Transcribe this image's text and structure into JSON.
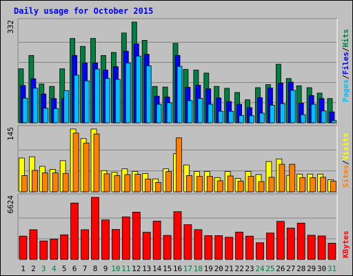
{
  "chart_data": {
    "type": "bar",
    "title": "Daily usage for October 2015",
    "categories": [
      "1",
      "2",
      "3",
      "4",
      "5",
      "6",
      "7",
      "8",
      "9",
      "10",
      "11",
      "12",
      "13",
      "14",
      "15",
      "16",
      "17",
      "18",
      "19",
      "20",
      "21",
      "22",
      "23",
      "24",
      "25",
      "26",
      "27",
      "28",
      "29",
      "30",
      "31"
    ],
    "weekend_days": [
      "3",
      "4",
      "10",
      "11",
      "17",
      "18",
      "24",
      "25",
      "31"
    ],
    "panels": [
      {
        "name": "hits-files-pages",
        "ymax_label": "332",
        "ymax": 332,
        "series": [
          {
            "name": "Hits",
            "color": "#008040",
            "values": [
              178,
              222,
              128,
              120,
              178,
              278,
              252,
              278,
              222,
              232,
              296,
              332,
              272,
              120,
              118,
              262,
              176,
              174,
              164,
              120,
              114,
              100,
              76,
              116,
              126,
              193,
              146,
              122,
              116,
              98,
              80
            ]
          },
          {
            "name": "Files",
            "color": "#0000ff",
            "values": [
              139,
              161,
              111,
              96,
              96,
              238,
              213,
              213,
              190,
              201,
              252,
              276,
              242,
              104,
              101,
              238,
              133,
              140,
              128,
              98,
              86,
              77,
              66,
              99,
              131,
              147,
              150,
              81,
              106,
              96,
              52
            ]
          },
          {
            "name": "Pages",
            "color": "#00bfff",
            "values": [
              113,
              146,
              80,
              79,
              138,
              189,
              170,
              209,
              178,
              175,
              229,
              252,
              220,
              93,
              98,
              218,
              105,
              112,
              93,
              70,
              70,
              56,
              55,
              64,
              90,
              95,
              139,
              59,
              93,
              71,
              39
            ]
          }
        ]
      },
      {
        "name": "visits-sites",
        "ymax_label": "145",
        "ymax": 145,
        "series": [
          {
            "name": "Visits",
            "color": "#ffff00",
            "values": [
              78,
              81,
              59,
              52,
              72,
              145,
              123,
              145,
              49,
              45,
              53,
              47,
              42,
              30,
              53,
              88,
              62,
              47,
              47,
              33,
              47,
              31,
              47,
              40,
              70,
              76,
              38,
              41,
              41,
              41,
              28
            ]
          },
          {
            "name": "Sites",
            "color": "#ff8000",
            "values": [
              44,
              56,
              50,
              50,
              49,
              142,
              119,
              140,
              48,
              44,
              46,
              47,
              36,
              28,
              53,
              131,
              44,
              42,
              42,
              32,
              43,
              31,
              42,
              30,
              40,
              70,
              70,
              39,
              39,
              40,
              31
            ]
          }
        ]
      },
      {
        "name": "kbytes",
        "ymax_label": "6624",
        "ymax": 6624,
        "series": [
          {
            "name": "KBytes",
            "color": "#ff0000",
            "values": [
              2490,
              3170,
              1970,
              2170,
              2630,
              6020,
              3170,
              6624,
              4220,
              3200,
              4540,
              5050,
              2900,
              4090,
              2570,
              5100,
              3710,
              3180,
              2540,
              2540,
              2370,
              2920,
              2490,
              1780,
              2820,
              4060,
              3350,
              3880,
              2580,
              2510,
              1740
            ]
          }
        ]
      }
    ],
    "side_labels": {
      "panel1": [
        {
          "text": "Pages",
          "color": "#00bfff"
        },
        {
          "text": "/",
          "color": "#000000"
        },
        {
          "text": "Files",
          "color": "#0000ff"
        },
        {
          "text": "/",
          "color": "#000000"
        },
        {
          "text": "Hits",
          "color": "#008040"
        }
      ],
      "panel2": [
        {
          "text": "Sites",
          "color": "#ff8000"
        },
        {
          "text": "/",
          "color": "#000000"
        },
        {
          "text": "Visits",
          "color": "#ffff00"
        }
      ],
      "panel3": [
        {
          "text": "KBytes",
          "color": "#ff0000"
        }
      ]
    },
    "title_color": "#0000ff",
    "weekend_label_color": "#008040",
    "weekday_label_color": "#000000",
    "background_color": "#c0c0c0",
    "grid": true
  }
}
